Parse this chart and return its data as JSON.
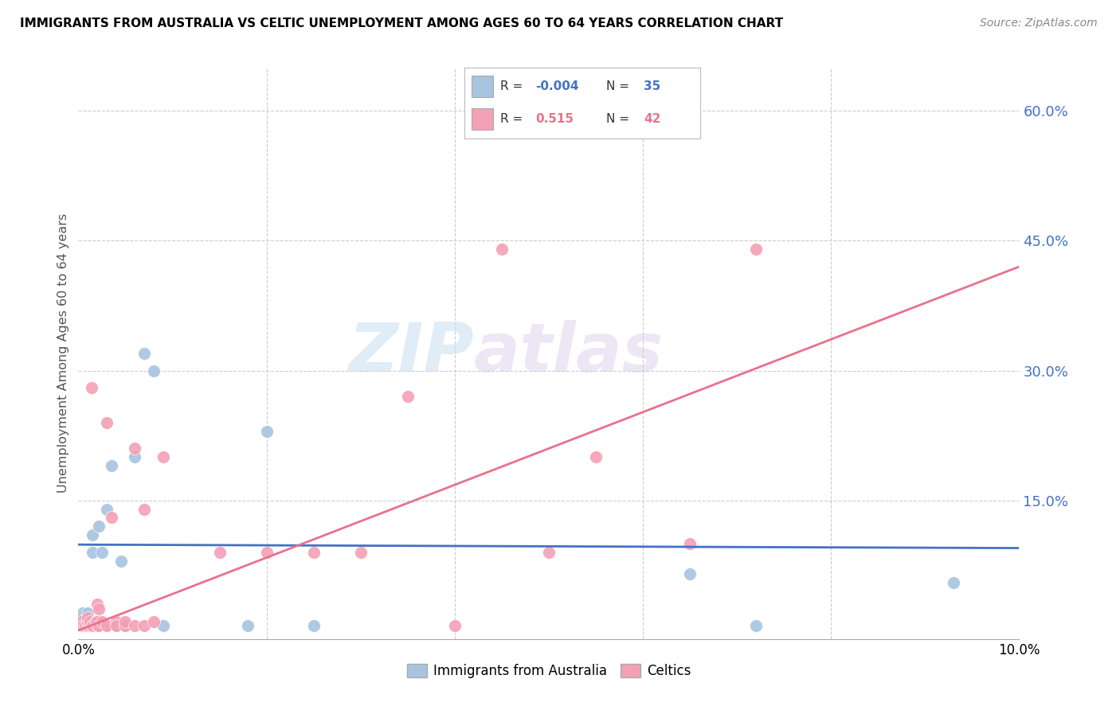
{
  "title": "IMMIGRANTS FROM AUSTRALIA VS CELTIC UNEMPLOYMENT AMONG AGES 60 TO 64 YEARS CORRELATION CHART",
  "source": "Source: ZipAtlas.com",
  "ylabel": "Unemployment Among Ages 60 to 64 years",
  "xlim": [
    0.0,
    0.1
  ],
  "ylim": [
    -0.01,
    0.65
  ],
  "xticks": [
    0.0,
    0.02,
    0.04,
    0.06,
    0.08,
    0.1
  ],
  "xtick_labels": [
    "0.0%",
    "",
    "",
    "",
    "",
    "10.0%"
  ],
  "yticks_right": [
    0.0,
    0.15,
    0.3,
    0.45,
    0.6
  ],
  "ytick_labels_right": [
    "",
    "15.0%",
    "30.0%",
    "45.0%",
    "60.0%"
  ],
  "series1_color": "#a8c4e0",
  "series2_color": "#f4a0b5",
  "trendline1_color": "#4472c4",
  "trendline2_color": "#e8728c",
  "R1": -0.004,
  "N1": 35,
  "R2": 0.515,
  "N2": 42,
  "watermark_zip": "ZIP",
  "watermark_atlas": "atlas",
  "legend_label1": "Immigrants from Australia",
  "legend_label2": "Celtics",
  "trendline1_x": [
    0.0,
    0.1
  ],
  "trendline1_y": [
    0.099,
    0.095
  ],
  "trendline2_x": [
    0.0,
    0.1
  ],
  "trendline2_y": [
    0.0,
    0.42
  ],
  "australia_x": [
    0.0005,
    0.0005,
    0.0007,
    0.001,
    0.001,
    0.001,
    0.0012,
    0.0012,
    0.0013,
    0.0015,
    0.0015,
    0.0018,
    0.002,
    0.002,
    0.002,
    0.002,
    0.0022,
    0.0025,
    0.003,
    0.003,
    0.0035,
    0.004,
    0.0045,
    0.005,
    0.005,
    0.006,
    0.007,
    0.008,
    0.009,
    0.018,
    0.02,
    0.025,
    0.065,
    0.072,
    0.093
  ],
  "australia_y": [
    0.01,
    0.02,
    0.005,
    0.005,
    0.01,
    0.02,
    0.005,
    0.01,
    0.005,
    0.09,
    0.11,
    0.005,
    0.005,
    0.01,
    0.005,
    0.01,
    0.12,
    0.09,
    0.005,
    0.14,
    0.19,
    0.005,
    0.08,
    0.005,
    0.005,
    0.2,
    0.32,
    0.3,
    0.005,
    0.005,
    0.23,
    0.005,
    0.065,
    0.005,
    0.055
  ],
  "celtics_x": [
    0.0003,
    0.0005,
    0.0007,
    0.001,
    0.001,
    0.001,
    0.0012,
    0.0012,
    0.0014,
    0.0015,
    0.0015,
    0.0018,
    0.002,
    0.002,
    0.002,
    0.0022,
    0.0022,
    0.0025,
    0.003,
    0.003,
    0.0035,
    0.004,
    0.004,
    0.005,
    0.005,
    0.006,
    0.006,
    0.007,
    0.007,
    0.008,
    0.009,
    0.015,
    0.02,
    0.025,
    0.03,
    0.035,
    0.04,
    0.045,
    0.05,
    0.055,
    0.065,
    0.072
  ],
  "celtics_y": [
    0.01,
    0.005,
    0.005,
    0.005,
    0.01,
    0.015,
    0.005,
    0.01,
    0.28,
    0.005,
    0.005,
    0.01,
    0.005,
    0.01,
    0.03,
    0.005,
    0.025,
    0.01,
    0.005,
    0.24,
    0.13,
    0.01,
    0.005,
    0.005,
    0.01,
    0.005,
    0.21,
    0.14,
    0.005,
    0.01,
    0.2,
    0.09,
    0.09,
    0.09,
    0.09,
    0.27,
    0.005,
    0.44,
    0.09,
    0.2,
    0.1,
    0.44
  ]
}
